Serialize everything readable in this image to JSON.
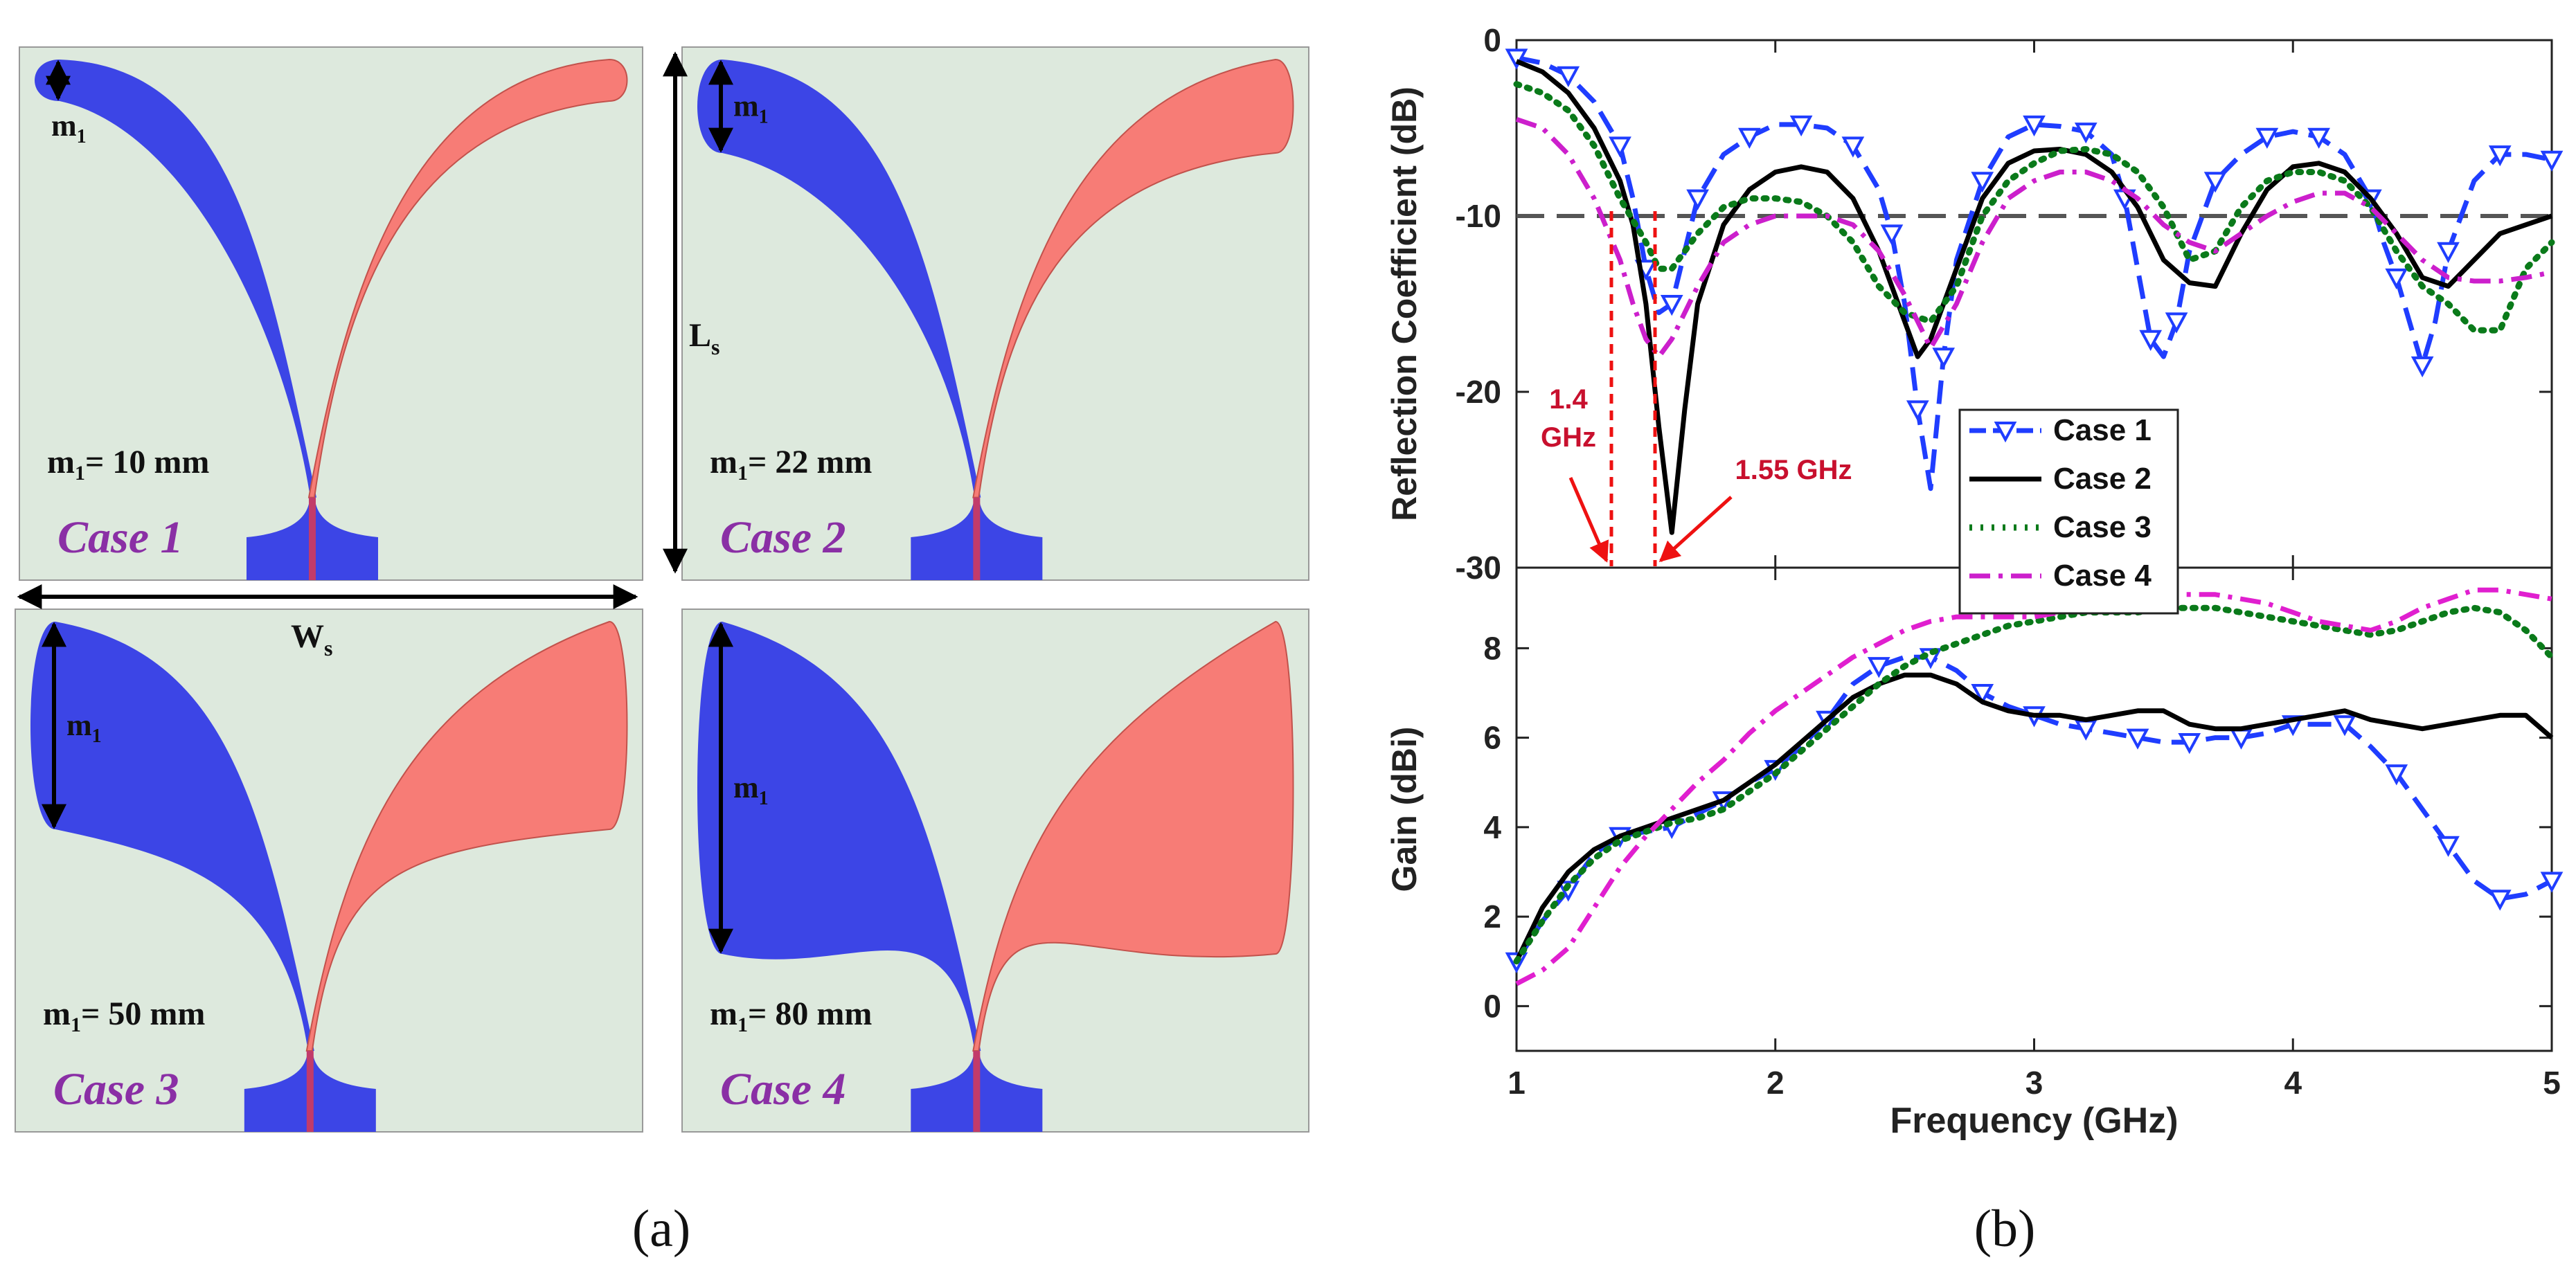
{
  "panel_a": {
    "caption": "(a)",
    "ls_label": "L",
    "ls_sub": "s",
    "ws_label": "W",
    "ws_sub": "s",
    "m1_label": "m",
    "m1_sub": "1",
    "cases": [
      {
        "name": "Case 1",
        "m1_value": "= 10 mm",
        "m1_mm": 10
      },
      {
        "name": "Case 2",
        "m1_value": "= 22 mm",
        "m1_mm": 22
      },
      {
        "name": "Case 3",
        "m1_value": "= 50 mm",
        "m1_mm": 50
      },
      {
        "name": "Case 4",
        "m1_value": "= 80 mm",
        "m1_mm": 80
      }
    ],
    "colors": {
      "background": "#dde9dd",
      "left_arm": "#3c45e6",
      "right_arm": "#f77c76",
      "feed": "#c23b6a",
      "text": "#111111",
      "case_text": "#8a2fa5"
    }
  },
  "panel_b": {
    "caption": "(b)",
    "annotations": {
      "f1": "1.4",
      "f1_unit": "GHz",
      "f2": "1.55 GHz",
      "color": "#c8102e"
    }
  },
  "chart_data": [
    {
      "type": "line",
      "title": "",
      "xlabel": "Frequency (GHz)",
      "ylabel": "Reflection Coefficient (dB)",
      "xlim": [
        1,
        5
      ],
      "ylim": [
        -30,
        0
      ],
      "xticks": [
        1,
        2,
        3,
        4,
        5
      ],
      "yticks": [
        -30,
        -20,
        -10,
        0
      ],
      "threshold": -10,
      "grid": false,
      "legend": "lower-center",
      "series": [
        {
          "name": "Case 1",
          "color": "#1f3dff",
          "dash": "dash",
          "marker": "triangle-down",
          "x": [
            1.0,
            1.1,
            1.2,
            1.3,
            1.4,
            1.45,
            1.5,
            1.55,
            1.6,
            1.65,
            1.7,
            1.8,
            1.9,
            2.0,
            2.1,
            2.2,
            2.3,
            2.4,
            2.45,
            2.5,
            2.55,
            2.6,
            2.65,
            2.7,
            2.8,
            2.9,
            3.0,
            3.1,
            3.2,
            3.3,
            3.35,
            3.4,
            3.45,
            3.5,
            3.55,
            3.6,
            3.7,
            3.8,
            3.9,
            4.0,
            4.1,
            4.2,
            4.3,
            4.35,
            4.4,
            4.45,
            4.5,
            4.55,
            4.6,
            4.7,
            4.8,
            4.9,
            5.0
          ],
          "y": [
            -1,
            -1.3,
            -2,
            -3.5,
            -6,
            -9,
            -13,
            -15.5,
            -15,
            -12,
            -9,
            -6.5,
            -5.5,
            -4.8,
            -4.8,
            -5,
            -6,
            -8.5,
            -11,
            -15,
            -21,
            -25.5,
            -18,
            -12.5,
            -8,
            -5.5,
            -4.8,
            -4.9,
            -5.2,
            -6.5,
            -9,
            -13,
            -17,
            -18,
            -16,
            -12,
            -8,
            -6.5,
            -5.5,
            -5.2,
            -5.5,
            -6.5,
            -9,
            -11.5,
            -13.5,
            -16,
            -18.5,
            -16,
            -12,
            -8,
            -6.5,
            -6.5,
            -6.8
          ]
        },
        {
          "name": "Case 2",
          "color": "#000000",
          "dash": "solid",
          "marker": "none",
          "x": [
            1.0,
            1.1,
            1.2,
            1.3,
            1.4,
            1.45,
            1.5,
            1.55,
            1.6,
            1.65,
            1.7,
            1.8,
            1.9,
            2.0,
            2.1,
            2.2,
            2.3,
            2.4,
            2.5,
            2.55,
            2.6,
            2.7,
            2.8,
            2.9,
            3.0,
            3.1,
            3.2,
            3.3,
            3.4,
            3.5,
            3.6,
            3.7,
            3.8,
            3.9,
            4.0,
            4.1,
            4.2,
            4.3,
            4.4,
            4.5,
            4.6,
            4.7,
            4.8,
            4.9,
            5.0
          ],
          "y": [
            -1.2,
            -1.8,
            -3,
            -5,
            -8,
            -10.5,
            -15,
            -22,
            -28,
            -21,
            -15,
            -10.5,
            -8.5,
            -7.5,
            -7.2,
            -7.5,
            -9,
            -12,
            -16,
            -18,
            -17,
            -13,
            -9,
            -7,
            -6.3,
            -6.2,
            -6.5,
            -7.5,
            -9.5,
            -12.5,
            -13.8,
            -14,
            -11,
            -8.5,
            -7.2,
            -7,
            -7.5,
            -9,
            -11,
            -13.5,
            -14,
            -12.5,
            -11,
            -10.5,
            -10
          ]
        },
        {
          "name": "Case 3",
          "color": "#0a7a1a",
          "dash": "dot",
          "marker": "none",
          "x": [
            1.0,
            1.1,
            1.2,
            1.3,
            1.4,
            1.5,
            1.55,
            1.6,
            1.7,
            1.8,
            1.9,
            2.0,
            2.1,
            2.2,
            2.3,
            2.4,
            2.5,
            2.6,
            2.7,
            2.8,
            2.9,
            3.0,
            3.1,
            3.2,
            3.3,
            3.4,
            3.5,
            3.6,
            3.7,
            3.8,
            3.9,
            4.0,
            4.1,
            4.2,
            4.3,
            4.4,
            4.5,
            4.6,
            4.7,
            4.8,
            4.9,
            5.0
          ],
          "y": [
            -2.5,
            -3,
            -4,
            -6,
            -9,
            -11.5,
            -13,
            -13,
            -11,
            -9.5,
            -9,
            -9,
            -9.2,
            -10,
            -11.5,
            -14,
            -15.5,
            -16,
            -14,
            -10,
            -8,
            -7,
            -6.3,
            -6.2,
            -6.5,
            -7.5,
            -9.5,
            -12.5,
            -12,
            -9.5,
            -8,
            -7.5,
            -7.5,
            -8,
            -9.5,
            -12,
            -14,
            -15,
            -16.5,
            -16.5,
            -13,
            -11.5
          ]
        },
        {
          "name": "Case 4",
          "color": "#cc1fcc",
          "dash": "dashdot",
          "marker": "none",
          "x": [
            1.0,
            1.1,
            1.2,
            1.3,
            1.4,
            1.45,
            1.5,
            1.55,
            1.6,
            1.7,
            1.8,
            1.9,
            2.0,
            2.1,
            2.2,
            2.3,
            2.4,
            2.5,
            2.6,
            2.7,
            2.8,
            2.9,
            3.0,
            3.1,
            3.2,
            3.3,
            3.4,
            3.5,
            3.6,
            3.7,
            3.8,
            3.9,
            4.0,
            4.1,
            4.2,
            4.3,
            4.4,
            4.5,
            4.6,
            4.7,
            4.8,
            4.9,
            5.0
          ],
          "y": [
            -4.5,
            -5,
            -6.5,
            -9,
            -12.5,
            -15,
            -17,
            -18,
            -17,
            -14,
            -11.5,
            -10.5,
            -10,
            -10,
            -10,
            -10.5,
            -12,
            -14.5,
            -17.5,
            -15,
            -11.5,
            -9,
            -8,
            -7.5,
            -7.5,
            -8,
            -9,
            -10.5,
            -11.5,
            -12,
            -11,
            -10,
            -9.2,
            -8.7,
            -8.7,
            -9.5,
            -11,
            -12.5,
            -13.5,
            -13.7,
            -13.7,
            -13.5,
            -13.2
          ]
        }
      ]
    },
    {
      "type": "line",
      "title": "",
      "xlabel": "Frequency (GHz)",
      "ylabel": "Gain (dBi)",
      "xlim": [
        1,
        5
      ],
      "ylim": [
        -1,
        9.8
      ],
      "xticks": [
        1,
        2,
        3,
        4,
        5
      ],
      "yticks": [
        0,
        2,
        4,
        6,
        8
      ],
      "grid": false,
      "series": [
        {
          "name": "Case 1",
          "color": "#1f3dff",
          "dash": "dash",
          "marker": "triangle-down",
          "x": [
            1.0,
            1.1,
            1.2,
            1.3,
            1.4,
            1.5,
            1.6,
            1.7,
            1.8,
            1.9,
            2.0,
            2.1,
            2.2,
            2.3,
            2.4,
            2.5,
            2.6,
            2.7,
            2.8,
            2.9,
            3.0,
            3.1,
            3.2,
            3.3,
            3.4,
            3.5,
            3.6,
            3.7,
            3.8,
            3.9,
            4.0,
            4.1,
            4.2,
            4.3,
            4.4,
            4.5,
            4.6,
            4.7,
            4.8,
            4.9,
            5.0
          ],
          "y": [
            1,
            1.9,
            2.6,
            3.4,
            3.8,
            3.9,
            4.0,
            4.3,
            4.6,
            5,
            5.3,
            5.8,
            6.4,
            7.2,
            7.6,
            7.8,
            7.8,
            7.5,
            7,
            6.7,
            6.5,
            6.3,
            6.2,
            6.1,
            6,
            5.9,
            5.9,
            6,
            6,
            6.1,
            6.3,
            6.3,
            6.3,
            5.8,
            5.2,
            4.4,
            3.6,
            2.8,
            2.4,
            2.5,
            2.8
          ]
        },
        {
          "name": "Case 2",
          "color": "#000000",
          "dash": "solid",
          "marker": "none",
          "x": [
            1.0,
            1.1,
            1.2,
            1.3,
            1.4,
            1.5,
            1.6,
            1.7,
            1.8,
            1.9,
            2.0,
            2.1,
            2.2,
            2.3,
            2.4,
            2.5,
            2.6,
            2.7,
            2.8,
            2.9,
            3.0,
            3.1,
            3.2,
            3.3,
            3.4,
            3.5,
            3.6,
            3.7,
            3.8,
            3.9,
            4.0,
            4.1,
            4.2,
            4.3,
            4.4,
            4.5,
            4.6,
            4.7,
            4.8,
            4.9,
            5.0
          ],
          "y": [
            1,
            2.2,
            3,
            3.5,
            3.8,
            4,
            4.2,
            4.4,
            4.6,
            5,
            5.4,
            5.9,
            6.4,
            6.9,
            7.2,
            7.4,
            7.4,
            7.2,
            6.8,
            6.6,
            6.5,
            6.5,
            6.4,
            6.5,
            6.6,
            6.6,
            6.3,
            6.2,
            6.2,
            6.3,
            6.4,
            6.5,
            6.6,
            6.4,
            6.3,
            6.2,
            6.3,
            6.4,
            6.5,
            6.5,
            6
          ]
        },
        {
          "name": "Case 3",
          "color": "#0a7a1a",
          "dash": "dot",
          "marker": "none",
          "x": [
            1.0,
            1.1,
            1.2,
            1.3,
            1.4,
            1.5,
            1.6,
            1.7,
            1.8,
            1.9,
            2.0,
            2.1,
            2.2,
            2.3,
            2.4,
            2.5,
            2.6,
            2.7,
            2.8,
            2.9,
            3.0,
            3.1,
            3.2,
            3.3,
            3.4,
            3.5,
            3.6,
            3.7,
            3.8,
            3.9,
            4.0,
            4.1,
            4.2,
            4.3,
            4.4,
            4.5,
            4.6,
            4.7,
            4.8,
            4.9,
            5.0
          ],
          "y": [
            1,
            1.9,
            2.7,
            3.3,
            3.7,
            3.9,
            4.1,
            4.2,
            4.4,
            4.8,
            5.2,
            5.7,
            6.2,
            6.7,
            7.2,
            7.6,
            7.9,
            8.1,
            8.3,
            8.5,
            8.6,
            8.7,
            8.8,
            8.8,
            8.8,
            8.9,
            8.9,
            8.9,
            8.8,
            8.7,
            8.6,
            8.5,
            8.4,
            8.3,
            8.4,
            8.6,
            8.8,
            8.9,
            8.8,
            8.4,
            7.8
          ]
        },
        {
          "name": "Case 4",
          "color": "#e01fcf",
          "dash": "dashdot",
          "marker": "none",
          "x": [
            1.0,
            1.1,
            1.2,
            1.3,
            1.4,
            1.5,
            1.6,
            1.7,
            1.8,
            1.9,
            2.0,
            2.1,
            2.2,
            2.3,
            2.4,
            2.5,
            2.6,
            2.7,
            2.8,
            2.9,
            3.0,
            3.1,
            3.2,
            3.3,
            3.4,
            3.5,
            3.6,
            3.7,
            3.8,
            3.9,
            4.0,
            4.1,
            4.2,
            4.3,
            4.4,
            4.5,
            4.6,
            4.7,
            4.8,
            4.9,
            5.0
          ],
          "y": [
            0.5,
            0.8,
            1.3,
            2.2,
            3.1,
            3.8,
            4.4,
            5,
            5.5,
            6.1,
            6.6,
            7,
            7.4,
            7.8,
            8.1,
            8.4,
            8.6,
            8.7,
            8.7,
            8.7,
            8.7,
            8.8,
            8.9,
            9,
            9.1,
            9.2,
            9.2,
            9.2,
            9.1,
            9,
            8.8,
            8.6,
            8.5,
            8.4,
            8.6,
            8.9,
            9.1,
            9.3,
            9.3,
            9.2,
            9.1
          ]
        }
      ]
    }
  ]
}
